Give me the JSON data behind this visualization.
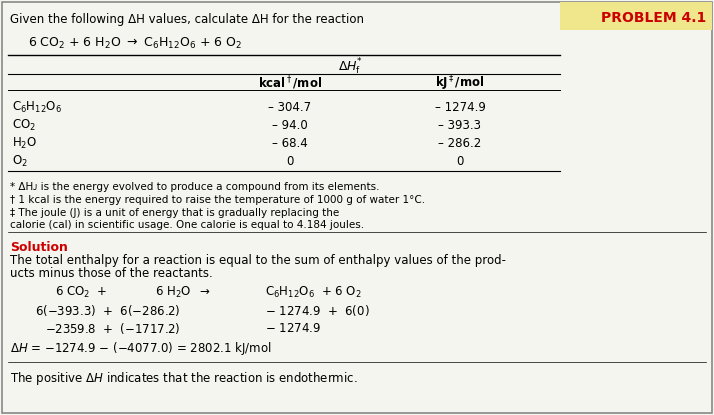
{
  "bg_color": "#f5f5f0",
  "problem_box_color": "#f0e68c",
  "problem_text": "PROBLEM 4.1",
  "problem_text_color": "#cc0000",
  "header_text": "Given the following ΔH values, calculate ΔH for the reaction",
  "reaction_line": "6 CO₂ + 6 H₂O → C₆H₁₂O₆ + 6 O₂",
  "table_header_center": "ΔHᴊ*",
  "table_col1": "kcal†/mol",
  "table_col2": "kJ‡/mol",
  "table_rows": [
    [
      "C₆H₁₂O₆",
      "– 304.7",
      "– 1274.9"
    ],
    [
      "CO₂",
      "– 94.0",
      "– 393.3"
    ],
    [
      "H₂O",
      "– 68.4",
      "– 286.2"
    ],
    [
      "O₂",
      "0",
      "0"
    ]
  ],
  "footnote1": "* ΔHᴊ is the energy evolved to produce a compound from its elements.",
  "footnote2": "† 1 kcal is the energy required to raise the temperature of 1000 g of water 1°C.",
  "footnote3a": "‡ The joule (J) is a unit of energy that is gradually replacing the",
  "footnote3b": "calorie (cal) in scientific usage. One calorie is equal to 4.184 joules.",
  "solution_label": "Solution",
  "solution_text": "The total enthalpy for a reaction is equal to the sum of enthalpy values of the prod-\nucts minus those of the reactants.",
  "sol_line1_left": "6 CO₂  +      6 H₂O  →",
  "sol_line1_right": "C₆H₁₂O₆  + 6 O₂",
  "sol_line2_left": "6(–393.3)  +  6(–286.2)",
  "sol_line2_right": "– 1274.9  +  6(0)",
  "sol_line3_left": "−2359.8  +  (−1717.2)",
  "sol_line3_right": "– 1274.9",
  "sol_line4": "ΔH = −1274.9 – (−4077.0) = 2802.1 kJ/mol",
  "final_text": "The positive ΔH indicates that the reaction is endothermic.",
  "border_color": "#888888"
}
